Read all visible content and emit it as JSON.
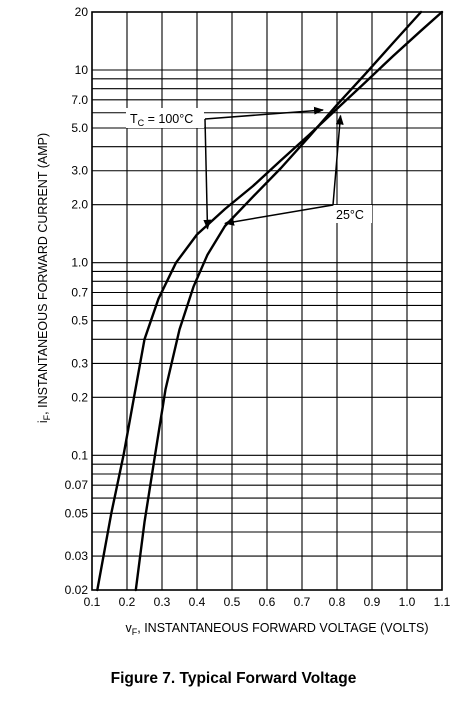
{
  "caption": "Figure 7. Typical Forward Voltage",
  "chart_data": {
    "type": "line",
    "title": "Figure 7. Typical Forward Voltage",
    "xlabel_main": "v",
    "xlabel_sub": "F",
    "xlabel_rest": ", INSTANTANEOUS FORWARD VOLTAGE (VOLTS)",
    "ylabel_main": "i",
    "ylabel_sub": "F",
    "ylabel_rest": ", INSTANTANEOUS FORWARD CURRENT (AMP)",
    "x_scale": "linear",
    "y_scale": "log",
    "xlim": [
      0.1,
      1.1
    ],
    "ylim": [
      0.02,
      20
    ],
    "grid": true,
    "x_ticks": [
      0.1,
      0.2,
      0.3,
      0.4,
      0.5,
      0.6,
      0.7,
      0.8,
      0.9,
      1.0,
      1.1
    ],
    "x_tick_labels": [
      "0.1",
      "0.2",
      "0.3",
      "0.4",
      "0.5",
      "0.6",
      "0.7",
      "0.8",
      "0.9",
      "1.0",
      "1.1"
    ],
    "y_grid": [
      0.02,
      0.03,
      0.04,
      0.05,
      0.06,
      0.07,
      0.08,
      0.09,
      0.1,
      0.2,
      0.3,
      0.4,
      0.5,
      0.6,
      0.7,
      0.8,
      0.9,
      1.0,
      2.0,
      3.0,
      4.0,
      5.0,
      6.0,
      7.0,
      8.0,
      9.0,
      10,
      20
    ],
    "y_ticks": [
      0.02,
      0.03,
      0.05,
      0.07,
      0.1,
      0.2,
      0.3,
      0.5,
      0.7,
      1.0,
      2.0,
      3.0,
      5.0,
      7.0,
      10,
      20
    ],
    "y_tick_labels": [
      "0.02",
      "0.03",
      "0.05",
      "0.07",
      "0.1",
      "0.2",
      "0.3",
      "0.5",
      "0.7",
      "1.0",
      "2.0",
      "3.0",
      "5.0",
      "7.0",
      "10",
      "20"
    ],
    "series": [
      {
        "x": [
          0.115,
          0.155,
          0.19,
          0.22,
          0.25,
          0.29,
          0.34,
          0.4,
          0.48,
          0.56,
          0.64,
          0.72,
          0.8,
          0.88,
          0.96,
          1.04,
          1.1
        ],
        "y": [
          0.02,
          0.05,
          0.1,
          0.2,
          0.4,
          0.65,
          1.0,
          1.4,
          1.9,
          2.5,
          3.4,
          4.6,
          6.3,
          8.6,
          11.8,
          16.0,
          20
        ]
      },
      {
        "x": [
          0.225,
          0.25,
          0.28,
          0.31,
          0.35,
          0.39,
          0.43,
          0.48,
          0.56,
          0.64,
          0.72,
          0.8,
          0.88,
          0.96,
          1.04
        ],
        "y": [
          0.02,
          0.045,
          0.1,
          0.22,
          0.45,
          0.75,
          1.1,
          1.55,
          2.2,
          3.1,
          4.5,
          6.6,
          9.5,
          13.8,
          20
        ]
      }
    ],
    "annotations": [
      {
        "label_main": "T",
        "label_sub": "C",
        "label_rest": " = 100°C",
        "arrows_to": [
          [
            0.76,
            6.2
          ],
          [
            0.43,
            1.5
          ]
        ]
      },
      {
        "label": "25°C",
        "arrows_to": [
          [
            0.81,
            5.8
          ],
          [
            0.48,
            1.6
          ]
        ]
      }
    ]
  }
}
